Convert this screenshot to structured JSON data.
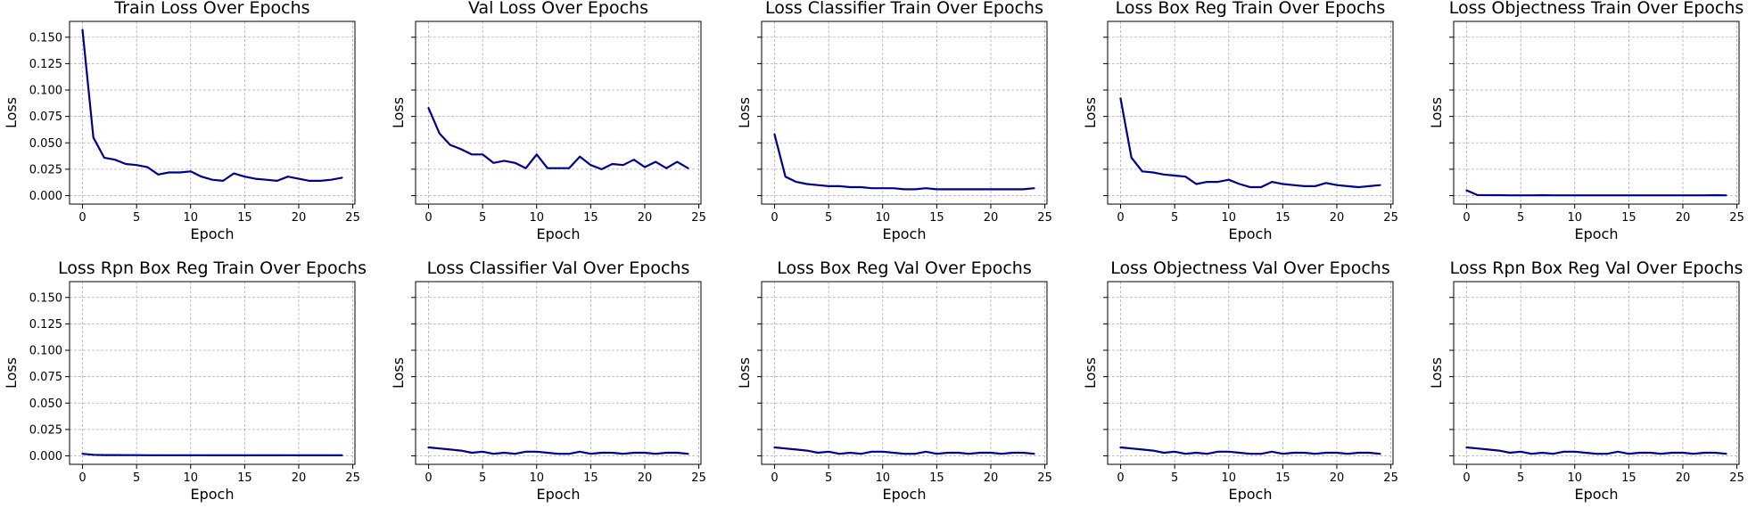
{
  "figure": {
    "line_color": "#00008b"
  },
  "chart_data": [
    {
      "type": "line",
      "title": "Train Loss Over Epochs",
      "xlabel": "Epoch",
      "ylabel": "Loss",
      "xlim": [
        -1.2,
        25.2
      ],
      "ylim": [
        -0.008,
        0.165
      ],
      "xticks": [
        0,
        5,
        10,
        15,
        20,
        25
      ],
      "yticks": [
        0.0,
        0.025,
        0.05,
        0.075,
        0.1,
        0.125,
        0.15
      ],
      "ytick_labels": [
        "0.000",
        "0.025",
        "0.050",
        "0.075",
        "0.100",
        "0.125",
        "0.150"
      ],
      "grid": true,
      "x": [
        0,
        1,
        2,
        3,
        4,
        5,
        6,
        7,
        8,
        9,
        10,
        11,
        12,
        13,
        14,
        15,
        16,
        17,
        18,
        19,
        20,
        21,
        22,
        23,
        24
      ],
      "values": [
        0.157,
        0.055,
        0.036,
        0.034,
        0.03,
        0.029,
        0.027,
        0.02,
        0.022,
        0.022,
        0.023,
        0.018,
        0.015,
        0.014,
        0.021,
        0.018,
        0.016,
        0.015,
        0.014,
        0.018,
        0.016,
        0.014,
        0.014,
        0.015,
        0.017
      ]
    },
    {
      "type": "line",
      "title": "Val Loss Over Epochs",
      "xlabel": "Epoch",
      "ylabel": "Loss",
      "xlim": [
        -1.2,
        25.2
      ],
      "ylim": [
        -0.008,
        0.165
      ],
      "xticks": [
        0,
        5,
        10,
        15,
        20,
        25
      ],
      "yticks": [
        0.0,
        0.025,
        0.05,
        0.075,
        0.1,
        0.125,
        0.15
      ],
      "ytick_labels": [],
      "grid": true,
      "x": [
        0,
        1,
        2,
        3,
        4,
        5,
        6,
        7,
        8,
        9,
        10,
        11,
        12,
        13,
        14,
        15,
        16,
        17,
        18,
        19,
        20,
        21,
        22,
        23,
        24
      ],
      "values": [
        0.083,
        0.059,
        0.048,
        0.044,
        0.039,
        0.039,
        0.031,
        0.033,
        0.031,
        0.026,
        0.039,
        0.026,
        0.026,
        0.026,
        0.037,
        0.029,
        0.025,
        0.03,
        0.029,
        0.034,
        0.027,
        0.032,
        0.026,
        0.032,
        0.026
      ]
    },
    {
      "type": "line",
      "title": "Loss Classifier Train Over Epochs",
      "xlabel": "Epoch",
      "ylabel": "Loss",
      "xlim": [
        -1.2,
        25.2
      ],
      "ylim": [
        -0.008,
        0.165
      ],
      "xticks": [
        0,
        5,
        10,
        15,
        20,
        25
      ],
      "yticks": [
        0.0,
        0.025,
        0.05,
        0.075,
        0.1,
        0.125,
        0.15
      ],
      "ytick_labels": [],
      "grid": true,
      "x": [
        0,
        1,
        2,
        3,
        4,
        5,
        6,
        7,
        8,
        9,
        10,
        11,
        12,
        13,
        14,
        15,
        16,
        17,
        18,
        19,
        20,
        21,
        22,
        23,
        24
      ],
      "values": [
        0.058,
        0.018,
        0.013,
        0.011,
        0.01,
        0.009,
        0.009,
        0.008,
        0.008,
        0.007,
        0.007,
        0.007,
        0.006,
        0.006,
        0.007,
        0.006,
        0.006,
        0.006,
        0.006,
        0.006,
        0.006,
        0.006,
        0.006,
        0.006,
        0.007
      ]
    },
    {
      "type": "line",
      "title": "Loss Box Reg Train Over Epochs",
      "xlabel": "Epoch",
      "ylabel": "Loss",
      "xlim": [
        -1.2,
        25.2
      ],
      "ylim": [
        -0.008,
        0.165
      ],
      "xticks": [
        0,
        5,
        10,
        15,
        20,
        25
      ],
      "yticks": [
        0.0,
        0.025,
        0.05,
        0.075,
        0.1,
        0.125,
        0.15
      ],
      "ytick_labels": [],
      "grid": true,
      "x": [
        0,
        1,
        2,
        3,
        4,
        5,
        6,
        7,
        8,
        9,
        10,
        11,
        12,
        13,
        14,
        15,
        16,
        17,
        18,
        19,
        20,
        21,
        22,
        23,
        24
      ],
      "values": [
        0.092,
        0.036,
        0.023,
        0.022,
        0.02,
        0.019,
        0.018,
        0.011,
        0.013,
        0.013,
        0.015,
        0.011,
        0.008,
        0.008,
        0.013,
        0.011,
        0.01,
        0.009,
        0.009,
        0.012,
        0.01,
        0.009,
        0.008,
        0.009,
        0.01
      ]
    },
    {
      "type": "line",
      "title": "Loss Objectness Train Over Epochs",
      "xlabel": "Epoch",
      "ylabel": "Loss",
      "xlim": [
        -1.2,
        25.2
      ],
      "ylim": [
        -0.008,
        0.165
      ],
      "xticks": [
        0,
        5,
        10,
        15,
        20,
        25
      ],
      "yticks": [
        0.0,
        0.025,
        0.05,
        0.075,
        0.1,
        0.125,
        0.15
      ],
      "ytick_labels": [],
      "grid": true,
      "x": [
        0,
        1,
        2,
        3,
        4,
        5,
        6,
        7,
        8,
        9,
        10,
        11,
        12,
        13,
        14,
        15,
        16,
        17,
        18,
        19,
        20,
        21,
        22,
        23,
        24
      ],
      "values": [
        0.005,
        0.0005,
        0.0004,
        0.0004,
        0.0003,
        0.0003,
        0.0003,
        0.0004,
        0.0003,
        0.0003,
        0.0003,
        0.0003,
        0.0003,
        0.0003,
        0.0003,
        0.0003,
        0.0003,
        0.0003,
        0.0003,
        0.0003,
        0.0003,
        0.0003,
        0.0003,
        0.0004,
        0.0003
      ]
    },
    {
      "type": "line",
      "title": "Loss Rpn Box Reg Train Over Epochs",
      "xlabel": "Epoch",
      "ylabel": "Loss",
      "xlim": [
        -1.2,
        25.2
      ],
      "ylim": [
        -0.008,
        0.165
      ],
      "xticks": [
        0,
        5,
        10,
        15,
        20,
        25
      ],
      "yticks": [
        0.0,
        0.025,
        0.05,
        0.075,
        0.1,
        0.125,
        0.15
      ],
      "ytick_labels": [
        "0.000",
        "0.025",
        "0.050",
        "0.075",
        "0.100",
        "0.125",
        "0.150"
      ],
      "grid": true,
      "x": [
        0,
        1,
        2,
        3,
        4,
        5,
        6,
        7,
        8,
        9,
        10,
        11,
        12,
        13,
        14,
        15,
        16,
        17,
        18,
        19,
        20,
        21,
        22,
        23,
        24
      ],
      "values": [
        0.002,
        0.001,
        0.0008,
        0.0008,
        0.0007,
        0.0007,
        0.0006,
        0.0006,
        0.0006,
        0.0006,
        0.0006,
        0.0006,
        0.0005,
        0.0005,
        0.0005,
        0.0005,
        0.0005,
        0.0005,
        0.0005,
        0.0006,
        0.0005,
        0.0005,
        0.0005,
        0.0005,
        0.0005
      ]
    },
    {
      "type": "line",
      "title": "Loss Classifier Val Over Epochs",
      "xlabel": "Epoch",
      "ylabel": "Loss",
      "xlim": [
        -1.2,
        25.2
      ],
      "ylim": [
        -0.008,
        0.165
      ],
      "xticks": [
        0,
        5,
        10,
        15,
        20,
        25
      ],
      "yticks": [
        0.0,
        0.025,
        0.05,
        0.075,
        0.1,
        0.125,
        0.15
      ],
      "ytick_labels": [],
      "grid": true,
      "x": [
        0,
        1,
        2,
        3,
        4,
        5,
        6,
        7,
        8,
        9,
        10,
        11,
        12,
        13,
        14,
        15,
        16,
        17,
        18,
        19,
        20,
        21,
        22,
        23,
        24
      ],
      "values": [
        0.008,
        0.007,
        0.006,
        0.005,
        0.003,
        0.004,
        0.002,
        0.003,
        0.002,
        0.004,
        0.004,
        0.003,
        0.002,
        0.002,
        0.004,
        0.002,
        0.003,
        0.003,
        0.002,
        0.003,
        0.003,
        0.002,
        0.003,
        0.003,
        0.002
      ]
    },
    {
      "type": "line",
      "title": "Loss Box Reg Val Over Epochs",
      "xlabel": "Epoch",
      "ylabel": "Loss",
      "xlim": [
        -1.2,
        25.2
      ],
      "ylim": [
        -0.008,
        0.165
      ],
      "xticks": [
        0,
        5,
        10,
        15,
        20,
        25
      ],
      "yticks": [
        0.0,
        0.025,
        0.05,
        0.075,
        0.1,
        0.125,
        0.15
      ],
      "ytick_labels": [],
      "grid": true,
      "x": [
        0,
        1,
        2,
        3,
        4,
        5,
        6,
        7,
        8,
        9,
        10,
        11,
        12,
        13,
        14,
        15,
        16,
        17,
        18,
        19,
        20,
        21,
        22,
        23,
        24
      ],
      "values": [
        0.008,
        0.007,
        0.006,
        0.005,
        0.003,
        0.004,
        0.002,
        0.003,
        0.002,
        0.004,
        0.004,
        0.003,
        0.002,
        0.002,
        0.004,
        0.002,
        0.003,
        0.003,
        0.002,
        0.003,
        0.003,
        0.002,
        0.003,
        0.003,
        0.002
      ]
    },
    {
      "type": "line",
      "title": "Loss Objectness Val Over Epochs",
      "xlabel": "Epoch",
      "ylabel": "Loss",
      "xlim": [
        -1.2,
        25.2
      ],
      "ylim": [
        -0.008,
        0.165
      ],
      "xticks": [
        0,
        5,
        10,
        15,
        20,
        25
      ],
      "yticks": [
        0.0,
        0.025,
        0.05,
        0.075,
        0.1,
        0.125,
        0.15
      ],
      "ytick_labels": [],
      "grid": true,
      "x": [
        0,
        1,
        2,
        3,
        4,
        5,
        6,
        7,
        8,
        9,
        10,
        11,
        12,
        13,
        14,
        15,
        16,
        17,
        18,
        19,
        20,
        21,
        22,
        23,
        24
      ],
      "values": [
        0.008,
        0.007,
        0.006,
        0.005,
        0.003,
        0.004,
        0.002,
        0.003,
        0.002,
        0.004,
        0.004,
        0.003,
        0.002,
        0.002,
        0.004,
        0.002,
        0.003,
        0.003,
        0.002,
        0.003,
        0.003,
        0.002,
        0.003,
        0.003,
        0.002
      ]
    },
    {
      "type": "line",
      "title": "Loss Rpn Box Reg Val Over Epochs",
      "xlabel": "Epoch",
      "ylabel": "Loss",
      "xlim": [
        -1.2,
        25.2
      ],
      "ylim": [
        -0.008,
        0.165
      ],
      "xticks": [
        0,
        5,
        10,
        15,
        20,
        25
      ],
      "yticks": [
        0.0,
        0.025,
        0.05,
        0.075,
        0.1,
        0.125,
        0.15
      ],
      "ytick_labels": [],
      "grid": true,
      "x": [
        0,
        1,
        2,
        3,
        4,
        5,
        6,
        7,
        8,
        9,
        10,
        11,
        12,
        13,
        14,
        15,
        16,
        17,
        18,
        19,
        20,
        21,
        22,
        23,
        24
      ],
      "values": [
        0.008,
        0.007,
        0.006,
        0.005,
        0.003,
        0.004,
        0.002,
        0.003,
        0.002,
        0.004,
        0.004,
        0.003,
        0.002,
        0.002,
        0.004,
        0.002,
        0.003,
        0.003,
        0.002,
        0.003,
        0.003,
        0.002,
        0.003,
        0.003,
        0.002
      ]
    }
  ]
}
